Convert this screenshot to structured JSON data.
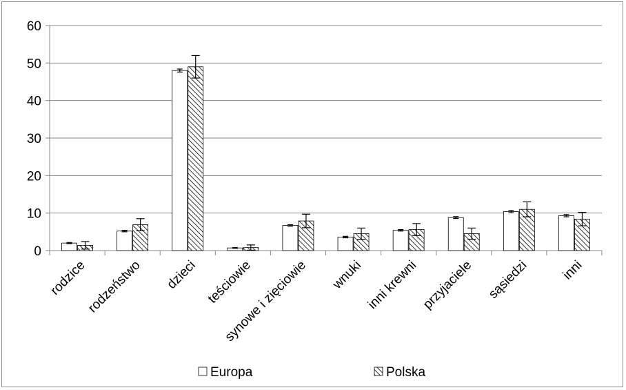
{
  "chart_data": {
    "type": "bar",
    "title": "",
    "xlabel": "",
    "ylabel": "",
    "ylim": [
      0,
      60
    ],
    "yticks": [
      "0",
      "10",
      "20",
      "30",
      "40",
      "50",
      "60"
    ],
    "grid": true,
    "legend_position": "bottom",
    "error_bars": true,
    "categories": [
      "rodzice",
      "rodzeństwo",
      "dzieci",
      "teściowie",
      "synowe i zięciowie",
      "wnuki",
      "inni krewni",
      "przyjaciele",
      "sąsiedzi",
      "inni"
    ],
    "series": [
      {
        "name": "Europa",
        "pattern": "solid-white",
        "values": [
          2.0,
          5.2,
          48.0,
          0.7,
          6.7,
          3.6,
          5.4,
          8.8,
          10.4,
          9.3
        ],
        "errors": [
          0.15,
          0.2,
          0.4,
          0.1,
          0.2,
          0.2,
          0.2,
          0.25,
          0.3,
          0.3
        ]
      },
      {
        "name": "Polska",
        "pattern": "diagonal-hatch",
        "values": [
          1.4,
          6.9,
          49.0,
          0.8,
          7.9,
          4.5,
          5.6,
          4.5,
          11.0,
          8.4
        ],
        "errors": [
          1.0,
          1.6,
          3.0,
          0.7,
          1.8,
          1.5,
          1.6,
          1.5,
          2.0,
          1.8
        ]
      }
    ],
    "colors": {
      "bar_stroke": "#000000",
      "grid": "#868686",
      "axis": "#868686"
    }
  }
}
